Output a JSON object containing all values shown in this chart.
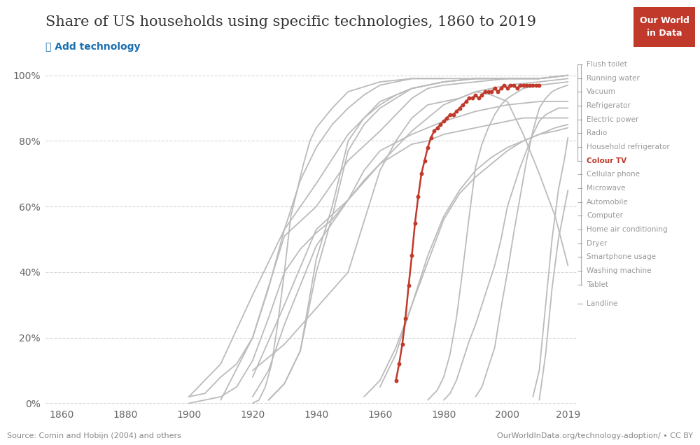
{
  "title": "Share of US households using specific technologies, 1860 to 2019",
  "subtitle": "➕ Add technology",
  "subtitle_color": "#1a6faf",
  "source_text": "Source: Comin and Hobijn (2004) and others",
  "url_text": "OurWorldInData.org/technology-adoption/ • CC BY",
  "logo_text": "Our World\nin Data",
  "logo_bg": "#c0392b",
  "xlim": [
    1855,
    2022
  ],
  "ylim": [
    -0.005,
    1.06
  ],
  "xticks": [
    1860,
    1880,
    1900,
    1920,
    1940,
    1960,
    1980,
    2000,
    2019
  ],
  "yticks": [
    0,
    0.2,
    0.4,
    0.6,
    0.8,
    1.0
  ],
  "ytick_labels": [
    "0%",
    "20%",
    "40%",
    "60%",
    "80%",
    "100%"
  ],
  "background_color": "#ffffff",
  "grid_color": "#d9d9d9",
  "grey_color": "#bbbbbb",
  "highlight_color": "#c0392b",
  "highlight_label": "Colour TV",
  "legend_labels": [
    "Flush toilet",
    "Running water",
    "Vacuum",
    "Refrigerator",
    "Electric power",
    "Radio",
    "Household refrigerator",
    "Colour TV",
    "Cellular phone",
    "Microwave",
    "Automobile",
    "Computer",
    "Home air conditioning",
    "Dryer",
    "Smartphone usage",
    "Washing machine",
    "Tablet",
    "Landline"
  ],
  "grey_series": [
    {
      "name": "Flush toilet",
      "x": [
        1910,
        1920,
        1930,
        1940,
        1950,
        1960,
        1970,
        1975,
        1980,
        1990,
        2000,
        2010,
        2019
      ],
      "y": [
        0.01,
        0.2,
        0.51,
        0.6,
        0.74,
        0.83,
        0.93,
        0.96,
        0.97,
        0.98,
        0.99,
        0.99,
        1.0
      ]
    },
    {
      "name": "Running water",
      "x": [
        1900,
        1910,
        1920,
        1930,
        1940,
        1950,
        1960,
        1970,
        1980,
        1990,
        2000,
        2010,
        2019
      ],
      "y": [
        0.02,
        0.12,
        0.33,
        0.53,
        0.67,
        0.82,
        0.92,
        0.96,
        0.98,
        0.99,
        0.99,
        0.99,
        1.0
      ]
    },
    {
      "name": "Vacuum",
      "x": [
        1920,
        1930,
        1940,
        1950,
        1960,
        1970,
        1980,
        1990,
        2000,
        2010,
        2019
      ],
      "y": [
        0.08,
        0.3,
        0.53,
        0.62,
        0.73,
        0.83,
        0.91,
        0.95,
        0.97,
        0.98,
        0.99
      ]
    },
    {
      "name": "Refrigerator",
      "x": [
        1925,
        1930,
        1935,
        1940,
        1945,
        1950,
        1955,
        1960,
        1965,
        1970,
        1975,
        1980,
        1990,
        2000,
        2010,
        2019
      ],
      "y": [
        0.01,
        0.06,
        0.16,
        0.44,
        0.6,
        0.8,
        0.87,
        0.91,
        0.94,
        0.96,
        0.97,
        0.98,
        0.99,
        0.99,
        0.99,
        1.0
      ]
    },
    {
      "name": "Electric power",
      "x": [
        1900,
        1905,
        1910,
        1915,
        1920,
        1925,
        1930,
        1935,
        1940,
        1945,
        1950,
        1955,
        1960,
        1970,
        1980,
        1990,
        2000,
        2010
      ],
      "y": [
        0.02,
        0.03,
        0.08,
        0.12,
        0.2,
        0.35,
        0.53,
        0.68,
        0.78,
        0.85,
        0.9,
        0.94,
        0.97,
        0.99,
        0.99,
        0.99,
        0.99,
        0.99
      ]
    },
    {
      "name": "Radio",
      "x": [
        1920,
        1922,
        1924,
        1926,
        1928,
        1930,
        1932,
        1934,
        1936,
        1938,
        1940,
        1945,
        1950,
        1960,
        1970,
        1980
      ],
      "y": [
        0.0,
        0.01,
        0.05,
        0.12,
        0.25,
        0.4,
        0.57,
        0.65,
        0.73,
        0.8,
        0.84,
        0.9,
        0.95,
        0.98,
        0.99,
        0.99
      ]
    },
    {
      "name": "Household refrigerator",
      "x": [
        1925,
        1930,
        1935,
        1940,
        1945,
        1950,
        1955,
        1960,
        1965,
        1970,
        1975,
        1980,
        1990,
        2000,
        2010,
        2019
      ],
      "y": [
        0.01,
        0.06,
        0.16,
        0.4,
        0.57,
        0.77,
        0.85,
        0.9,
        0.93,
        0.96,
        0.97,
        0.98,
        0.99,
        0.99,
        0.99,
        1.0
      ]
    },
    {
      "name": "Cellular phone",
      "x": [
        1990,
        1992,
        1994,
        1996,
        1998,
        2000,
        2002,
        2004,
        2006,
        2008,
        2010,
        2012,
        2014,
        2016,
        2019
      ],
      "y": [
        0.02,
        0.05,
        0.11,
        0.17,
        0.29,
        0.4,
        0.52,
        0.63,
        0.74,
        0.83,
        0.9,
        0.93,
        0.95,
        0.96,
        0.97
      ]
    },
    {
      "name": "Microwave",
      "x": [
        1975,
        1978,
        1980,
        1982,
        1984,
        1986,
        1988,
        1990,
        1992,
        1994,
        1996,
        1998,
        2000,
        2005,
        2010,
        2019
      ],
      "y": [
        0.01,
        0.04,
        0.08,
        0.15,
        0.26,
        0.41,
        0.57,
        0.72,
        0.79,
        0.84,
        0.88,
        0.91,
        0.93,
        0.96,
        0.97,
        0.98
      ]
    },
    {
      "name": "Automobile",
      "x": [
        1900,
        1905,
        1910,
        1915,
        1920,
        1925,
        1930,
        1935,
        1940,
        1945,
        1950,
        1955,
        1960,
        1970,
        1980,
        1990,
        2000,
        2010,
        2019
      ],
      "y": [
        0.0,
        0.01,
        0.02,
        0.05,
        0.13,
        0.26,
        0.4,
        0.47,
        0.52,
        0.56,
        0.62,
        0.71,
        0.77,
        0.82,
        0.86,
        0.89,
        0.91,
        0.92,
        0.92
      ]
    },
    {
      "name": "Computer",
      "x": [
        1980,
        1982,
        1984,
        1986,
        1988,
        1990,
        1992,
        1994,
        1996,
        1998,
        2000,
        2002,
        2004,
        2006,
        2008,
        2010,
        2012,
        2014,
        2016,
        2019
      ],
      "y": [
        0.01,
        0.03,
        0.07,
        0.13,
        0.19,
        0.24,
        0.3,
        0.36,
        0.42,
        0.5,
        0.6,
        0.66,
        0.72,
        0.77,
        0.82,
        0.86,
        0.88,
        0.89,
        0.9,
        0.9
      ]
    },
    {
      "name": "Home air conditioning",
      "x": [
        1955,
        1960,
        1965,
        1970,
        1975,
        1980,
        1985,
        1990,
        1995,
        2000,
        2005,
        2010,
        2015,
        2019
      ],
      "y": [
        0.02,
        0.07,
        0.17,
        0.3,
        0.43,
        0.56,
        0.64,
        0.69,
        0.73,
        0.77,
        0.8,
        0.82,
        0.84,
        0.85
      ]
    },
    {
      "name": "Dryer",
      "x": [
        1960,
        1965,
        1970,
        1975,
        1980,
        1985,
        1990,
        1995,
        2000,
        2005,
        2010,
        2015,
        2019
      ],
      "y": [
        0.05,
        0.15,
        0.3,
        0.45,
        0.57,
        0.65,
        0.71,
        0.75,
        0.78,
        0.8,
        0.82,
        0.83,
        0.84
      ]
    },
    {
      "name": "Smartphone usage",
      "x": [
        2008,
        2010,
        2012,
        2014,
        2016,
        2018,
        2019
      ],
      "y": [
        0.02,
        0.1,
        0.3,
        0.5,
        0.65,
        0.75,
        0.81
      ]
    },
    {
      "name": "Washing machine",
      "x": [
        1920,
        1925,
        1930,
        1935,
        1940,
        1945,
        1950,
        1955,
        1960,
        1965,
        1970,
        1975,
        1980,
        1985,
        1990,
        1995,
        2000,
        2005,
        2010,
        2015,
        2019
      ],
      "y": [
        0.02,
        0.1,
        0.24,
        0.36,
        0.48,
        0.55,
        0.62,
        0.68,
        0.73,
        0.76,
        0.79,
        0.8,
        0.82,
        0.83,
        0.84,
        0.85,
        0.86,
        0.87,
        0.87,
        0.87,
        0.87
      ]
    },
    {
      "name": "Tablet",
      "x": [
        2010,
        2012,
        2014,
        2016,
        2018,
        2019
      ],
      "y": [
        0.01,
        0.15,
        0.35,
        0.5,
        0.6,
        0.65
      ]
    },
    {
      "name": "Landline",
      "x": [
        1920,
        1930,
        1940,
        1950,
        1960,
        1965,
        1970,
        1975,
        1980,
        1985,
        1990,
        1995,
        2000,
        2005,
        2010,
        2015,
        2019
      ],
      "y": [
        0.1,
        0.18,
        0.29,
        0.4,
        0.71,
        0.8,
        0.87,
        0.91,
        0.92,
        0.93,
        0.95,
        0.94,
        0.92,
        0.82,
        0.7,
        0.57,
        0.42
      ]
    }
  ],
  "colour_tv_series": {
    "x": [
      1965,
      1966,
      1967,
      1968,
      1969,
      1970,
      1971,
      1972,
      1973,
      1974,
      1975,
      1976,
      1977,
      1978,
      1979,
      1980,
      1981,
      1982,
      1983,
      1984,
      1985,
      1986,
      1987,
      1988,
      1989,
      1990,
      1991,
      1992,
      1993,
      1994,
      1995,
      1996,
      1997,
      1998,
      1999,
      2000,
      2001,
      2002,
      2003,
      2004,
      2005,
      2006,
      2007,
      2008,
      2009,
      2010
    ],
    "y": [
      0.07,
      0.12,
      0.18,
      0.26,
      0.36,
      0.45,
      0.55,
      0.63,
      0.7,
      0.74,
      0.78,
      0.81,
      0.83,
      0.84,
      0.85,
      0.86,
      0.87,
      0.88,
      0.88,
      0.89,
      0.9,
      0.91,
      0.92,
      0.93,
      0.93,
      0.94,
      0.93,
      0.94,
      0.95,
      0.95,
      0.95,
      0.96,
      0.95,
      0.96,
      0.97,
      0.96,
      0.97,
      0.97,
      0.96,
      0.97,
      0.97,
      0.97,
      0.97,
      0.97,
      0.97,
      0.97
    ]
  }
}
